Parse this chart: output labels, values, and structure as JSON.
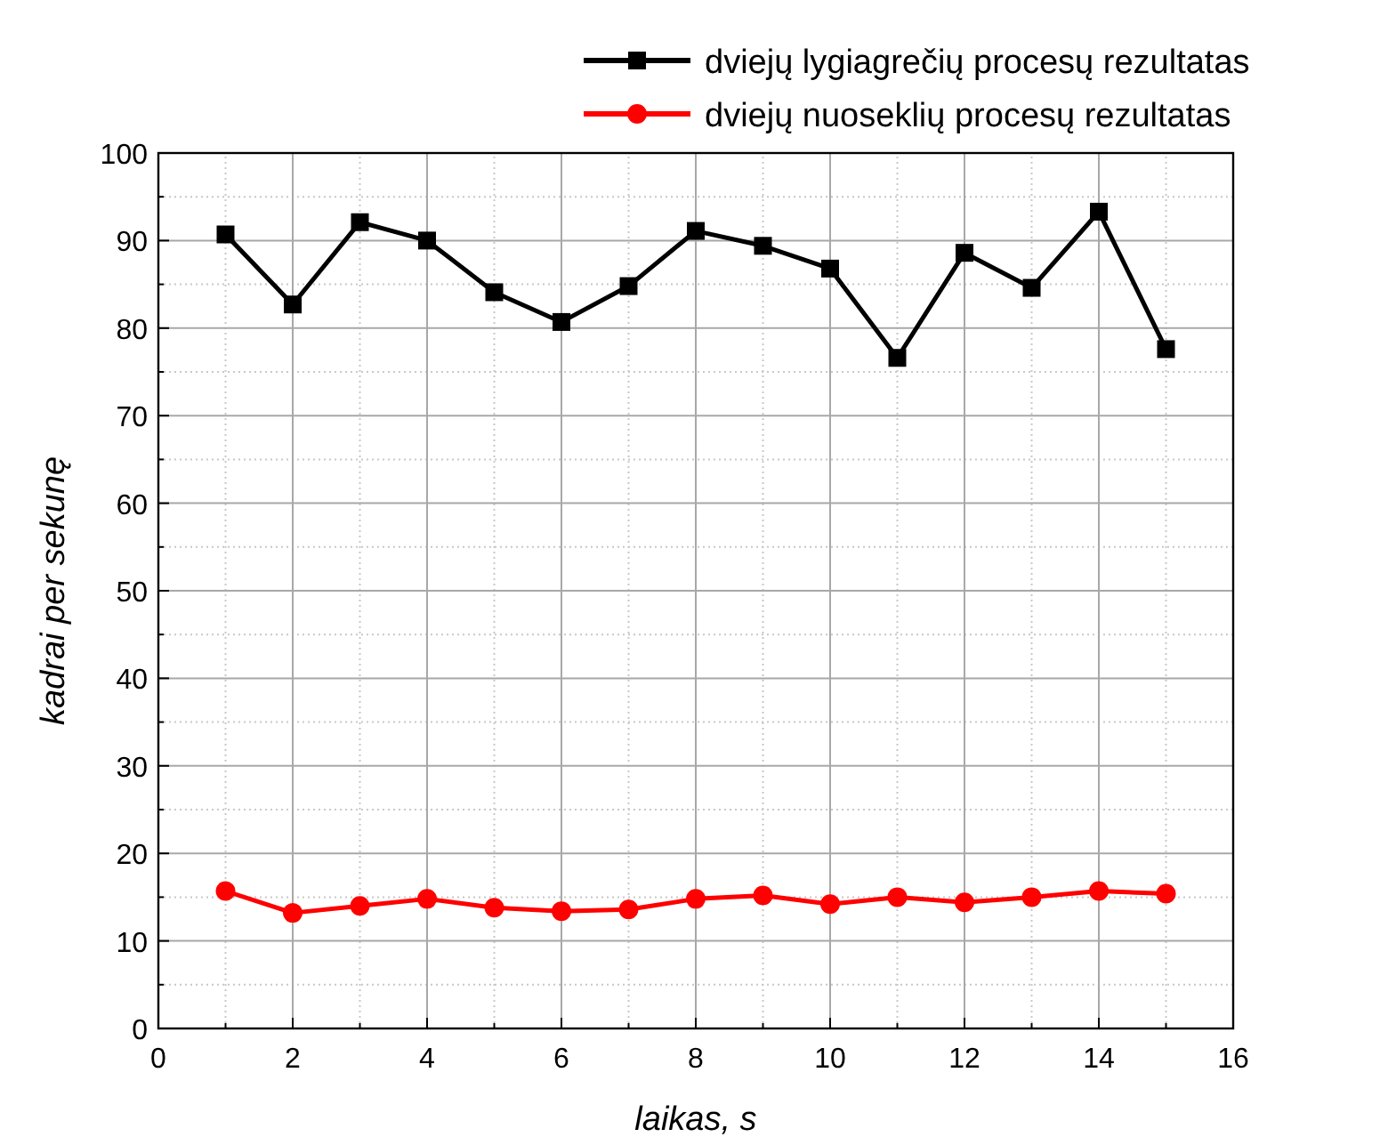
{
  "chart_data": {
    "type": "line",
    "xlabel": "laikas, s",
    "ylabel": "kadrai per sekunę",
    "x": [
      1,
      2,
      3,
      4,
      5,
      6,
      7,
      8,
      9,
      10,
      11,
      12,
      13,
      14,
      15
    ],
    "series": [
      {
        "name": "dviejų lygiagrečių procesų rezultatas",
        "color": "#000000",
        "marker": "square",
        "values": [
          90.7,
          82.7,
          92.1,
          90.0,
          84.1,
          80.7,
          84.8,
          91.1,
          89.4,
          86.8,
          76.6,
          88.6,
          84.6,
          93.3,
          77.6
        ]
      },
      {
        "name": "dviejų nuoseklių procesų rezultatas",
        "color": "#ff0000",
        "marker": "circle",
        "values": [
          15.7,
          13.2,
          14.0,
          14.8,
          13.8,
          13.4,
          13.6,
          14.8,
          15.2,
          14.2,
          15.0,
          14.4,
          15.0,
          15.7,
          15.4
        ]
      }
    ],
    "xlim": [
      0,
      16
    ],
    "xticks": [
      0,
      2,
      4,
      6,
      8,
      10,
      12,
      14,
      16
    ],
    "ylim": [
      0,
      100
    ],
    "yticks": [
      0,
      10,
      20,
      30,
      40,
      50,
      60,
      70,
      80,
      90,
      100
    ],
    "grid": true,
    "legend": "top right"
  }
}
